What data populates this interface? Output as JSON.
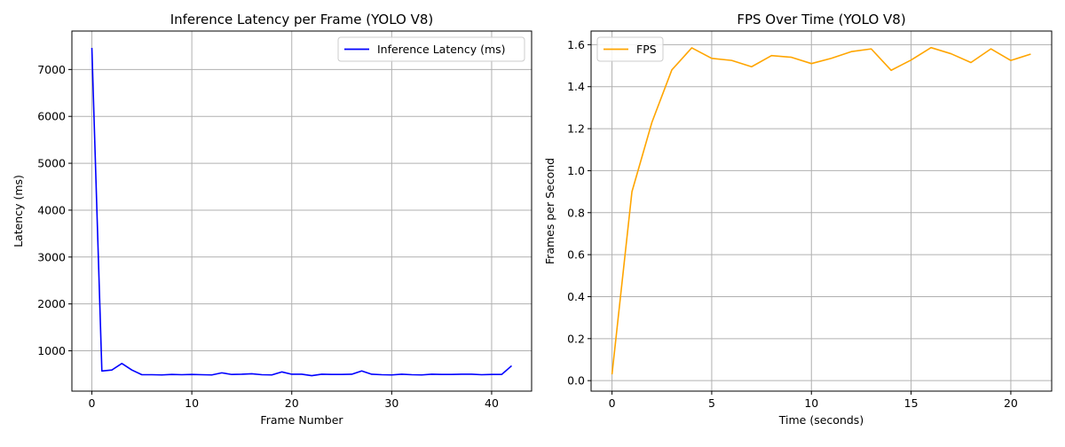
{
  "chart_data": [
    {
      "type": "line",
      "title": "Inference Latency per Frame (YOLO V8)",
      "xlabel": "Frame Number",
      "ylabel": "Latency (ms)",
      "xlim": [
        -2,
        44
      ],
      "ylim": [
        140,
        7820
      ],
      "xticks": [
        0,
        10,
        20,
        30,
        40
      ],
      "yticks": [
        1000,
        2000,
        3000,
        4000,
        5000,
        6000,
        7000
      ],
      "grid": true,
      "legend_position": "top-right",
      "series": [
        {
          "name": "Inference Latency (ms)",
          "color": "#0000ff",
          "x": [
            0,
            1,
            2,
            3,
            4,
            5,
            6,
            7,
            8,
            9,
            10,
            11,
            12,
            13,
            14,
            15,
            16,
            17,
            18,
            19,
            20,
            21,
            22,
            23,
            24,
            25,
            26,
            27,
            28,
            29,
            30,
            31,
            32,
            33,
            34,
            35,
            36,
            37,
            38,
            39,
            40,
            41,
            42
          ],
          "y": [
            7460,
            570,
            590,
            730,
            590,
            490,
            490,
            485,
            495,
            490,
            495,
            490,
            485,
            530,
            495,
            500,
            510,
            490,
            485,
            550,
            500,
            500,
            470,
            500,
            495,
            495,
            500,
            570,
            500,
            490,
            485,
            500,
            490,
            485,
            500,
            495,
            495,
            500,
            500,
            490,
            495,
            495,
            680
          ]
        }
      ]
    },
    {
      "type": "line",
      "title": "FPS Over Time (YOLO V8)",
      "xlabel": "Time (seconds)",
      "ylabel": "Frames per Second",
      "xlim": [
        -1.05,
        22.05
      ],
      "ylim": [
        -0.05,
        1.665
      ],
      "xticks": [
        0,
        5,
        10,
        15,
        20
      ],
      "yticks": [
        0.0,
        0.2,
        0.4,
        0.6,
        0.8,
        1.0,
        1.2,
        1.4,
        1.6
      ],
      "ytick_labels": [
        "0.0",
        "0.2",
        "0.4",
        "0.6",
        "0.8",
        "1.0",
        "1.2",
        "1.4",
        "1.6"
      ],
      "grid": true,
      "legend_position": "top-left",
      "series": [
        {
          "name": "FPS",
          "color": "#ffa500",
          "x": [
            0,
            1,
            2,
            3,
            4,
            5,
            6,
            7,
            8,
            9,
            10,
            11,
            12,
            13,
            14,
            15,
            16,
            17,
            18,
            19,
            20,
            21
          ],
          "y": [
            0.03,
            0.9,
            1.23,
            1.48,
            1.585,
            1.535,
            1.525,
            1.495,
            1.548,
            1.54,
            1.51,
            1.535,
            1.567,
            1.58,
            1.478,
            1.527,
            1.586,
            1.557,
            1.515,
            1.58,
            1.525,
            1.555
          ]
        }
      ]
    }
  ]
}
